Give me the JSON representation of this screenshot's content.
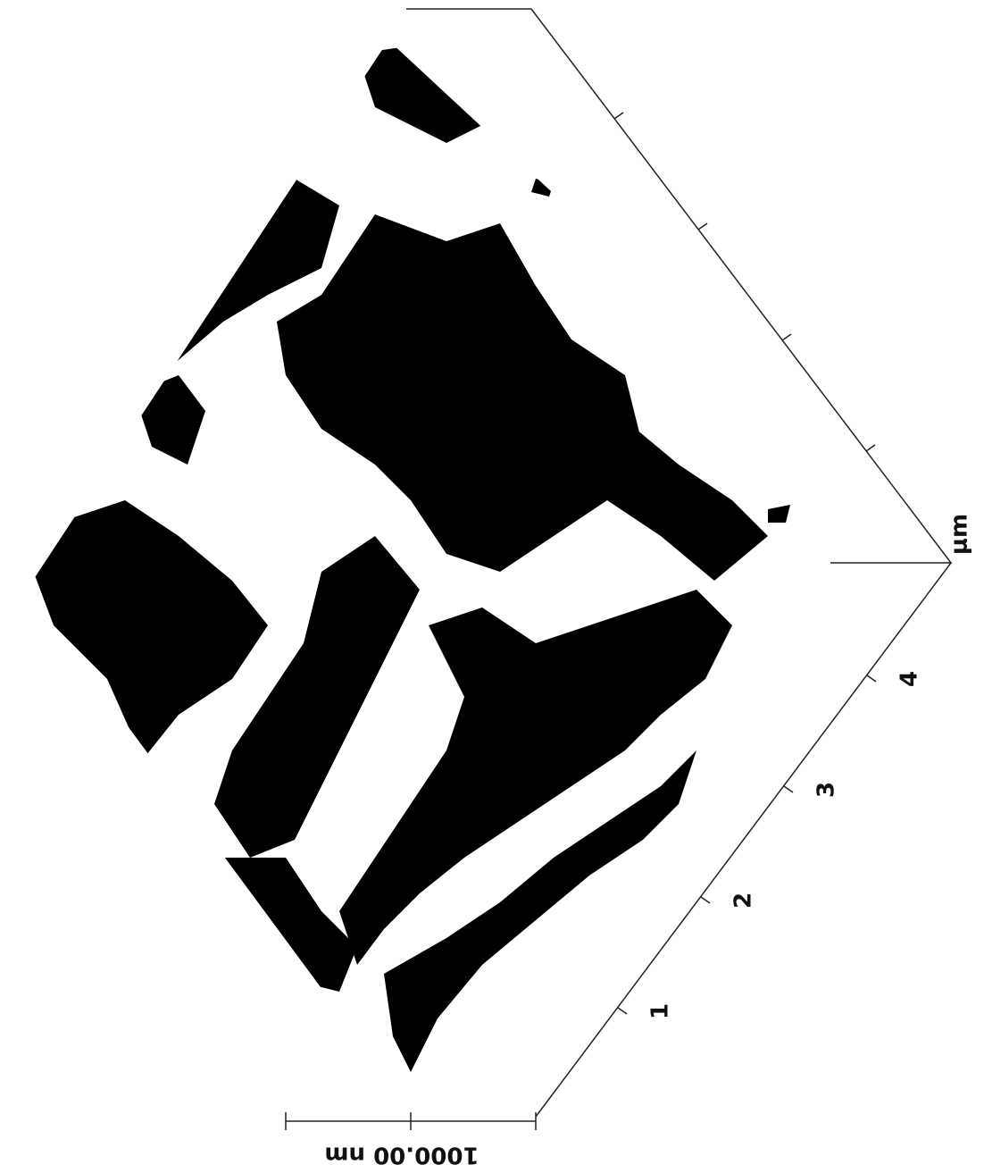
{
  "axis": {
    "tick_labels": [
      "1",
      "2",
      "3",
      "4"
    ],
    "unit": "μm"
  },
  "z_scale": {
    "label": "1000.00 nm"
  }
}
